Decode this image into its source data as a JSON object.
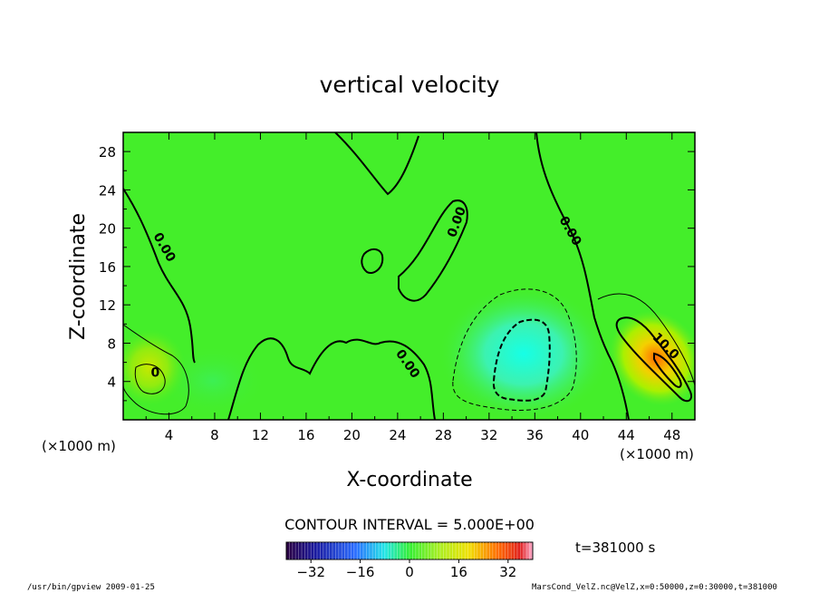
{
  "chart_data": {
    "type": "heatmap",
    "title": "vertical velocity",
    "xlabel": "X-coordinate",
    "ylabel": "Z-coordinate",
    "x_unit_label": "(×1000 m)",
    "y_unit_label": "(×1000 m)",
    "xlim": [
      0,
      50
    ],
    "ylim": [
      0,
      30
    ],
    "x_ticks": [
      "4",
      "8",
      "12",
      "16",
      "20",
      "24",
      "28",
      "32",
      "36",
      "40",
      "44",
      "48"
    ],
    "y_ticks": [
      "4",
      "8",
      "12",
      "16",
      "20",
      "24",
      "28"
    ],
    "contour_interval_text": "CONTOUR INTERVAL = 5.000E+00",
    "time_text": "t=381000 s",
    "colorbar": {
      "range": [
        -40,
        40
      ],
      "tick_labels": [
        "−32",
        "−16",
        "0",
        "16",
        "32"
      ],
      "tick_values": [
        -32,
        -16,
        0,
        16,
        32
      ]
    },
    "contour_labels": [
      {
        "text": "0.00",
        "x": 3.3,
        "y": 17.8,
        "angle": 60
      },
      {
        "text": "0.00",
        "x": 29.5,
        "y": 20.5,
        "angle": -70
      },
      {
        "text": "0.00",
        "x": 38.8,
        "y": 19.5,
        "angle": 60
      },
      {
        "text": "0.00",
        "x": 24.6,
        "y": 5.6,
        "angle": 55
      },
      {
        "text": "0",
        "x": 2.8,
        "y": 4.5,
        "angle": 0
      },
      {
        "text": "10.0",
        "x": 47.2,
        "y": 7.4,
        "angle": 45
      }
    ],
    "features": [
      {
        "kind": "downdraft",
        "center_x": 35,
        "center_y": 7,
        "peak_value": -15
      },
      {
        "kind": "updraft",
        "center_x": 47,
        "center_y": 6,
        "peak_value": 20
      },
      {
        "kind": "updraft",
        "center_x": 2.5,
        "center_y": 5,
        "peak_value": 6
      }
    ]
  },
  "footer": {
    "left": "/usr/bin/gpview   2009-01-25",
    "right": "MarsCond_VelZ.nc@VelZ,x=0:50000,z=0:30000,t=381000"
  },
  "colors": {
    "background_field": "#33ee22",
    "downdraft": "#22eeee",
    "updraft": "#ee6600"
  }
}
